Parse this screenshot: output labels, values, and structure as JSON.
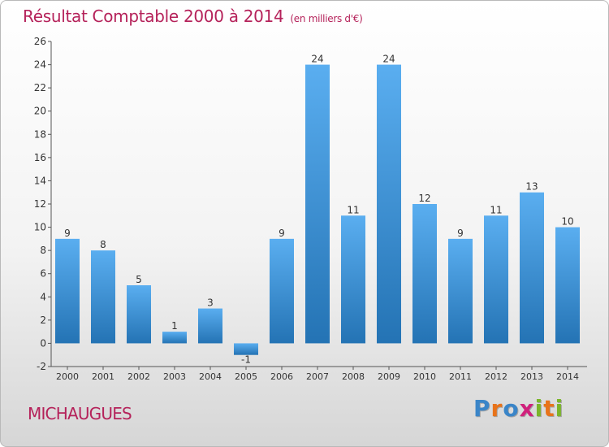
{
  "header": {
    "title": "Résultat Comptable 2000 à 2014",
    "subtitle": "(en milliers d'€)"
  },
  "footer": {
    "town": "MICHAUGUES",
    "brand": "Proxiti",
    "brand_letters": [
      "P",
      "r",
      "o",
      "x",
      "i",
      "t",
      "i"
    ]
  },
  "colors": {
    "title": "#b5225a",
    "bar_light": "#5aaef0",
    "bar_dark": "#2473b4",
    "axis": "#555555",
    "brand_letters": [
      "#3a85c8",
      "#e8731a",
      "#3a85c8",
      "#d0217c",
      "#7bb52a",
      "#e8731a",
      "#7bb52a"
    ]
  },
  "chart_data": {
    "type": "bar",
    "title": "Résultat Comptable 2000 à 2014",
    "subtitle": "(en milliers d'€)",
    "xlabel": "",
    "ylabel": "",
    "ylim": [
      -2,
      26
    ],
    "yticks": [
      -2,
      0,
      2,
      4,
      6,
      8,
      10,
      12,
      14,
      16,
      18,
      20,
      22,
      24,
      26
    ],
    "grid": false,
    "categories": [
      "2000",
      "2001",
      "2002",
      "2003",
      "2004",
      "2005",
      "2006",
      "2007",
      "2008",
      "2009",
      "2010",
      "2011",
      "2012",
      "2013",
      "2014"
    ],
    "values": [
      9,
      8,
      5,
      1,
      3,
      -1,
      9,
      24,
      11,
      24,
      12,
      9,
      11,
      13,
      10
    ],
    "labels": [
      "9",
      "8",
      "5",
      "1",
      "3",
      "-1",
      "9",
      "24",
      "11",
      "24",
      "12",
      "9",
      "11",
      "13",
      "10"
    ]
  }
}
